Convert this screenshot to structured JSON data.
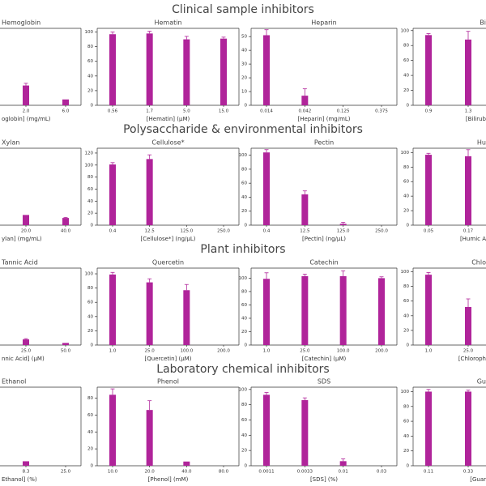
{
  "sections": [
    "Clinical sample inhibitors",
    "Polysaccharide & environmental inhibitors",
    "Plant inhibitors",
    "Laboratory chemical inhibitors"
  ],
  "chart_data": [
    {
      "type": "bar",
      "title": "Hemoglobin",
      "categories": [
        "2.0",
        "6.0"
      ],
      "values": [
        27,
        8
      ],
      "errors": [
        3,
        null
      ],
      "ylim": [
        0,
        105
      ],
      "xlabel": "oglobin] (mg/mL)",
      "color": "#b0249a"
    },
    {
      "type": "bar",
      "title": "Hematin",
      "categories": [
        "0.56",
        "1.7",
        "5.0",
        "15.0"
      ],
      "values": [
        97,
        98,
        90,
        91
      ],
      "errors": [
        3,
        3,
        4,
        2
      ],
      "ylim": [
        0,
        105
      ],
      "yticks": [
        0,
        20,
        40,
        60,
        80,
        100
      ],
      "xlabel": "[Hematin] (µM)",
      "color": "#b0249a"
    },
    {
      "type": "bar",
      "title": "Heparin",
      "categories": [
        "0.014",
        "0.042",
        "0.125",
        "0.375"
      ],
      "values": [
        51,
        7,
        null,
        null
      ],
      "errors": [
        4,
        5,
        null,
        null
      ],
      "ylim": [
        0,
        56
      ],
      "yticks": [
        0,
        10,
        20,
        30,
        40,
        50
      ],
      "xlabel": "[Heparin] (mg/mL)",
      "color": "#b0249a"
    },
    {
      "type": "bar",
      "title": "Bi",
      "categories": [
        "0.9",
        "1.3"
      ],
      "values": [
        94,
        88
      ],
      "errors": [
        2,
        11
      ],
      "ylim": [
        0,
        103
      ],
      "yticks": [
        0,
        20,
        40,
        60,
        80,
        100
      ],
      "xlabel": "[Bilirub",
      "color": "#b0249a"
    },
    {
      "type": "bar",
      "title": "Xylan",
      "categories": [
        "20.0",
        "40.0"
      ],
      "values": [
        17,
        12
      ],
      "errors": [
        null,
        1
      ],
      "ylim": [
        0,
        128
      ],
      "xlabel": "ylan] (mg/mL)",
      "color": "#b0249a"
    },
    {
      "type": "bar",
      "title": "Cellulose*",
      "categories": [
        "0.4",
        "12.5",
        "125.0",
        "250.0"
      ],
      "values": [
        101,
        110,
        null,
        null
      ],
      "errors": [
        3,
        7,
        null,
        null
      ],
      "ylim": [
        0,
        128
      ],
      "yticks": [
        0,
        20,
        40,
        60,
        80,
        100,
        120
      ],
      "xlabel": "[Cellulose*] (ng/µL)",
      "color": "#b0249a"
    },
    {
      "type": "bar",
      "title": "Pectin",
      "categories": [
        "0.4",
        "12.5",
        "125.0",
        "250.0"
      ],
      "values": [
        104,
        44,
        2,
        null
      ],
      "errors": [
        4,
        5,
        2,
        null
      ],
      "ylim": [
        0,
        110
      ],
      "yticks": [
        0,
        20,
        40,
        60,
        80,
        100
      ],
      "xlabel": "[Pectin] (ng/µL)",
      "color": "#b0249a"
    },
    {
      "type": "bar",
      "title": "Hu",
      "categories": [
        "0.05",
        "0.17"
      ],
      "values": [
        97,
        95
      ],
      "errors": [
        2,
        9
      ],
      "ylim": [
        0,
        106
      ],
      "yticks": [
        0,
        20,
        40,
        60,
        80,
        100
      ],
      "xlabel": "[Humic A",
      "color": "#b0249a"
    },
    {
      "type": "bar",
      "title": "Tannic Acid",
      "categories": [
        "25.0",
        "50.0"
      ],
      "values": [
        8,
        3
      ],
      "errors": [
        1,
        null
      ],
      "ylim": [
        0,
        108
      ],
      "xlabel": "nnic Acid] (µM)",
      "color": "#b0249a"
    },
    {
      "type": "bar",
      "title": "Quercetin",
      "categories": [
        "1.0",
        "25.0",
        "100.0",
        "200.0"
      ],
      "values": [
        99,
        88,
        77,
        null
      ],
      "errors": [
        3,
        5,
        8,
        null
      ],
      "ylim": [
        0,
        108
      ],
      "yticks": [
        0,
        20,
        40,
        60,
        80,
        100
      ],
      "xlabel": "[Quercetin] (µM)",
      "color": "#b0249a"
    },
    {
      "type": "bar",
      "title": "Catechin",
      "categories": [
        "1.0",
        "25.0",
        "100.0",
        "200.0"
      ],
      "values": [
        99,
        103,
        103,
        100
      ],
      "errors": [
        9,
        3,
        8,
        2
      ],
      "ylim": [
        0,
        115
      ],
      "yticks": [
        0,
        20,
        40,
        60,
        80,
        100
      ],
      "xlabel": "[Catechin] (µM)",
      "color": "#b0249a"
    },
    {
      "type": "bar",
      "title": "Chlo",
      "categories": [
        "1.0",
        "25.0"
      ],
      "values": [
        96,
        52
      ],
      "errors": [
        3,
        11
      ],
      "ylim": [
        0,
        105
      ],
      "yticks": [
        0,
        20,
        40,
        60,
        80,
        100
      ],
      "xlabel": "[Chloroph",
      "color": "#b0249a"
    },
    {
      "type": "bar",
      "title": "Ethanol",
      "categories": [
        "8.3",
        "25.0"
      ],
      "values": [
        6,
        null
      ],
      "errors": [
        null,
        null
      ],
      "ylim": [
        0,
        105
      ],
      "xlabel": "Ethanol] (%)",
      "color": "#b0249a"
    },
    {
      "type": "bar",
      "title": "Phenol",
      "categories": [
        "10.0",
        "20.0",
        "40.0",
        "80.0"
      ],
      "values": [
        84,
        66,
        5,
        null
      ],
      "errors": [
        7,
        11,
        null,
        null
      ],
      "ylim": [
        0,
        93
      ],
      "yticks": [
        0,
        20,
        40,
        60,
        80
      ],
      "xlabel": "[Phenol] (mM)",
      "color": "#b0249a"
    },
    {
      "type": "bar",
      "title": "SDS",
      "categories": [
        "0.0011",
        "0.0033",
        "0.01",
        "0.03"
      ],
      "values": [
        93,
        86,
        6,
        null
      ],
      "errors": [
        3,
        3,
        3,
        null
      ],
      "ylim": [
        0,
        103
      ],
      "yticks": [
        0,
        20,
        40,
        60,
        80,
        100
      ],
      "xlabel": "[SDS] (%)",
      "color": "#b0249a"
    },
    {
      "type": "bar",
      "title": "Gu",
      "categories": [
        "0.11",
        "0.33"
      ],
      "values": [
        100,
        100
      ],
      "errors": [
        3,
        2
      ],
      "ylim": [
        0,
        106
      ],
      "yticks": [
        0,
        20,
        40,
        60,
        80,
        100
      ],
      "xlabel": "[Guar",
      "color": "#b0249a"
    }
  ]
}
